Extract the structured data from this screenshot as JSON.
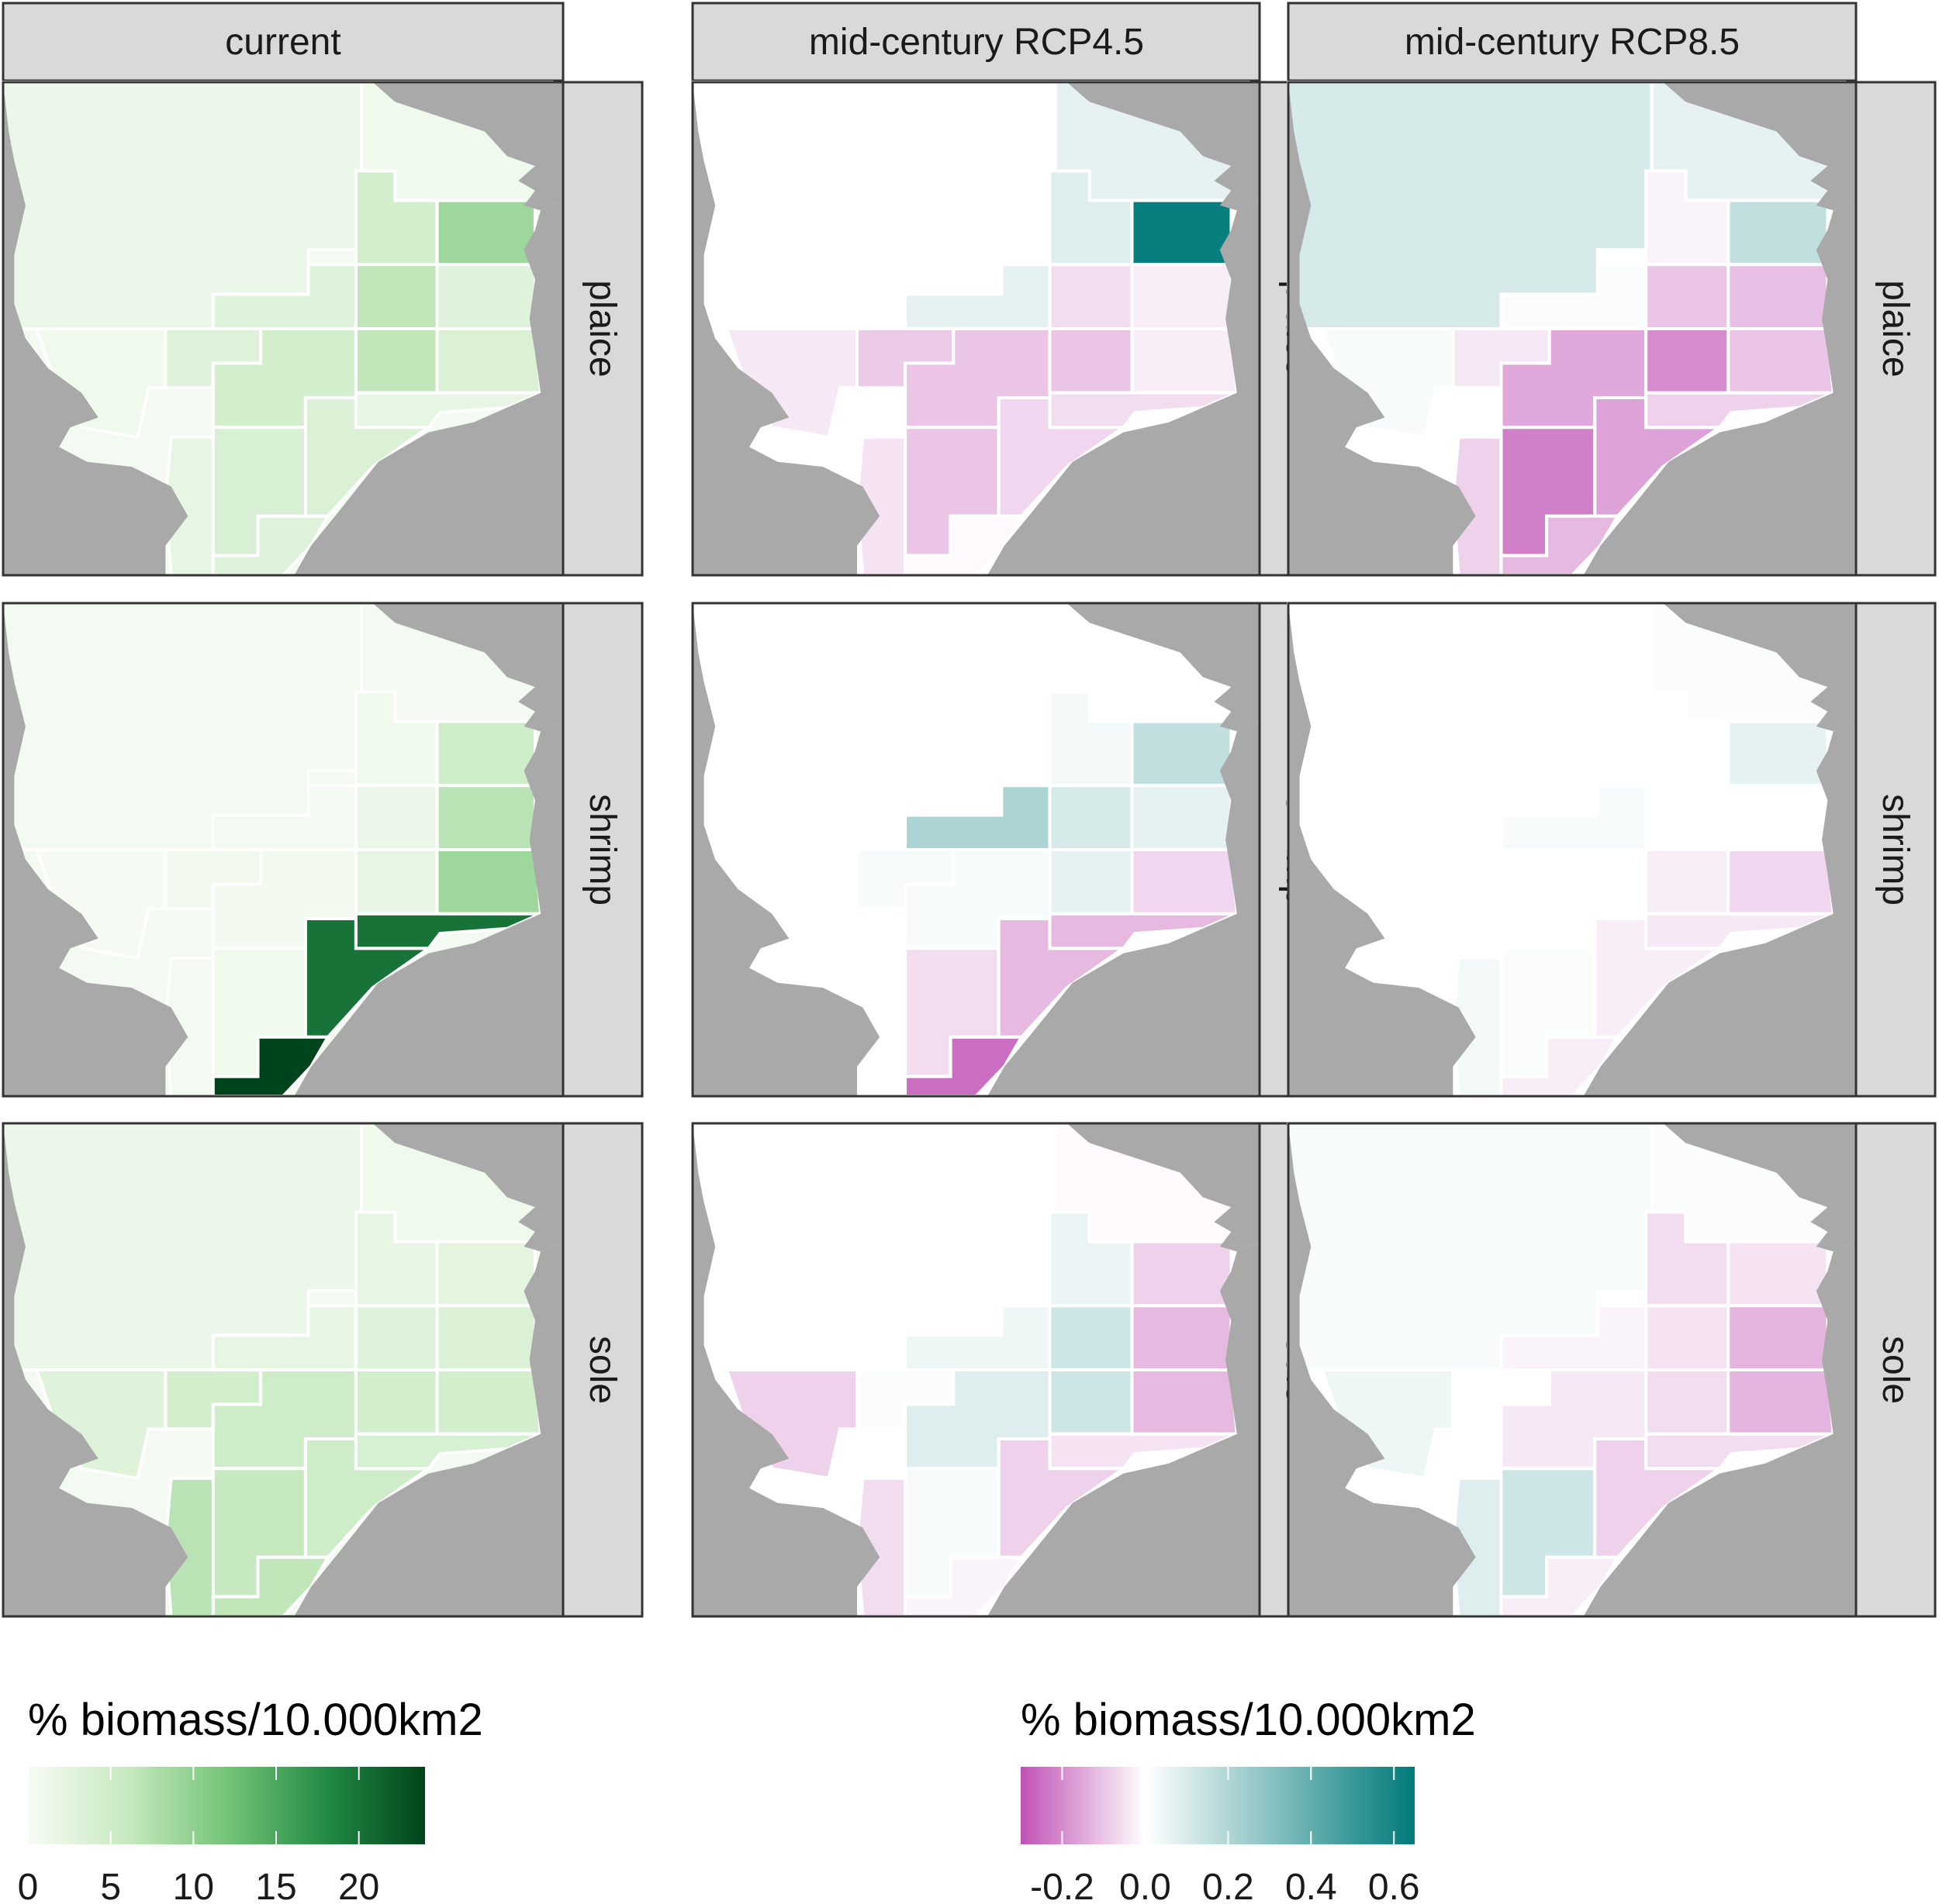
{
  "column_headers": [
    "current",
    "mid-century RCP4.5",
    "mid-century RCP8.5"
  ],
  "row_headers": [
    "plaice",
    "shrimp",
    "sole"
  ],
  "chart_data": {
    "type": "heatmap",
    "description_units": "% biomass/10.000km2",
    "cells_layout_rows": [
      "A",
      "B",
      "C",
      "D",
      "E",
      "F",
      "G",
      "H"
    ],
    "cells_layout_cols": [
      1,
      2,
      3,
      4,
      5,
      6,
      7,
      8,
      9,
      10,
      11,
      12
    ],
    "panels": [
      {
        "species": "plaice",
        "scenario": "current",
        "values": {
          "big": 1.5,
          "ne": 1.0,
          "n1": 4.5,
          "n2": 9.0,
          "m1": 3.0,
          "m2": 6.5,
          "m3": 3.0,
          "w1": 1.0,
          "w2": 3.0,
          "c1": 4.5,
          "c2": 6.5,
          "c3": 3.5,
          "s1": 4.0,
          "s2": 3.5,
          "s3": 2.0,
          "s4": 3.0,
          "s5": 2.0
        }
      },
      {
        "species": "plaice",
        "scenario": "mid-century RCP4.5",
        "values": {
          "big": 0.0,
          "ne": 0.06,
          "n1": 0.08,
          "n2": 0.6,
          "m1": 0.06,
          "m2": -0.06,
          "m3": -0.03,
          "w1": -0.04,
          "w2": -0.09,
          "c1": -0.1,
          "c2": -0.1,
          "c3": -0.03,
          "s1": -0.1,
          "s2": -0.07,
          "s3": -0.05,
          "s4": -0.01,
          "s5": -0.06
        }
      },
      {
        "species": "plaice",
        "scenario": "mid-century RCP8.5",
        "values": {
          "big": 0.1,
          "ne": 0.06,
          "n1": -0.02,
          "n2": 0.15,
          "m1": 0.01,
          "m2": -0.1,
          "m3": -0.11,
          "w1": 0.02,
          "w2": -0.04,
          "c1": -0.15,
          "c2": -0.2,
          "c3": -0.1,
          "s1": -0.22,
          "s2": -0.16,
          "s3": -0.08,
          "s4": -0.12,
          "s5": -0.08
        }
      },
      {
        "species": "shrimp",
        "scenario": "current",
        "values": {
          "big": 0.5,
          "ne": 0.5,
          "n1": 1.0,
          "n2": 5.0,
          "m1": 0.5,
          "m2": 1.5,
          "m3": 7.0,
          "w1": 0.3,
          "w2": 0.8,
          "c1": 0.6,
          "c2": 2.0,
          "c3": 9.0,
          "s1": 1.0,
          "s2": 20.0,
          "s3": 0.5,
          "s4": 26.0,
          "s5": 20.0
        }
      },
      {
        "species": "shrimp",
        "scenario": "mid-century RCP4.5",
        "values": {
          "big": 0.0,
          "ne": 0.0,
          "n1": 0.03,
          "n2": 0.15,
          "m1": 0.2,
          "m2": 0.1,
          "m3": 0.06,
          "w1": 0.0,
          "w2": 0.02,
          "c1": 0.02,
          "c2": 0.06,
          "c3": -0.07,
          "s1": -0.06,
          "s2": -0.12,
          "s3": 0.0,
          "s4": -0.25,
          "s5": -0.12
        }
      },
      {
        "species": "shrimp",
        "scenario": "mid-century RCP8.5",
        "values": {
          "big": 0.0,
          "ne": 0.01,
          "n1": 0.0,
          "n2": 0.06,
          "m1": 0.02,
          "m2": 0.0,
          "m3": 0.0,
          "w1": 0.0,
          "w2": 0.0,
          "c1": 0.0,
          "c2": -0.03,
          "c3": -0.07,
          "s1": 0.01,
          "s2": -0.03,
          "s3": 0.03,
          "s4": -0.03,
          "s5": -0.04
        }
      },
      {
        "species": "sole",
        "scenario": "current",
        "values": {
          "big": 1.5,
          "ne": 1.0,
          "n1": 2.0,
          "n2": 2.5,
          "m1": 2.0,
          "m2": 3.0,
          "m3": 3.5,
          "w1": 3.0,
          "w2": 4.5,
          "c1": 5.0,
          "c2": 4.5,
          "c3": 4.5,
          "s1": 6.0,
          "s2": 5.0,
          "s3": 7.0,
          "s4": 6.5,
          "s5": 4.0
        }
      },
      {
        "species": "sole",
        "scenario": "mid-century RCP4.5",
        "values": {
          "big": 0.0,
          "ne": -0.01,
          "n1": 0.05,
          "n2": -0.08,
          "m1": 0.04,
          "m2": 0.12,
          "m3": -0.12,
          "w1": -0.08,
          "w2": 0.01,
          "c1": 0.08,
          "c2": 0.12,
          "c3": -0.12,
          "s1": 0.02,
          "s2": -0.08,
          "s3": -0.06,
          "s4": -0.02,
          "s5": -0.05
        }
      },
      {
        "species": "sole",
        "scenario": "mid-century RCP8.5",
        "values": {
          "big": 0.02,
          "ne": 0.01,
          "n1": -0.06,
          "n2": -0.05,
          "m1": -0.02,
          "m2": -0.05,
          "m3": -0.13,
          "w1": 0.04,
          "w2": 0.0,
          "c1": -0.04,
          "c2": -0.06,
          "c3": -0.13,
          "s1": 0.12,
          "s2": -0.08,
          "s3": 0.08,
          "s4": -0.03,
          "s5": -0.06
        }
      }
    ],
    "legend_current": {
      "title": "% biomass/10.000km2",
      "ticks": [
        0,
        5,
        10,
        15,
        20
      ],
      "range": [
        0,
        24
      ],
      "colors": [
        "#f7fcf5",
        "#c7e9c0",
        "#74c476",
        "#238b45",
        "#00441b"
      ]
    },
    "legend_change": {
      "title": "% biomass/10.000km2",
      "ticks": [
        -0.2,
        0.0,
        0.2,
        0.4,
        0.6
      ],
      "tick_labels": [
        "-0.2",
        "0.0",
        "0.2",
        "0.4",
        "0.6"
      ],
      "range": [
        -0.3,
        0.65
      ],
      "colors": [
        "#c051b5",
        "#ffffff",
        "#007a7a"
      ]
    },
    "land_color": "#a9a9a9",
    "strip_color": "#d9d9d9"
  }
}
